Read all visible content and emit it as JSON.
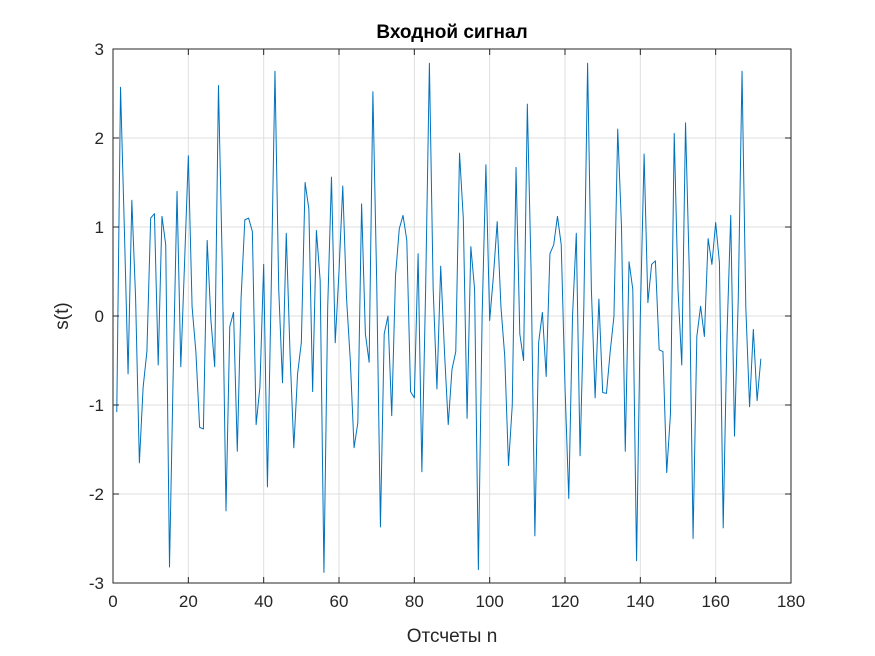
{
  "chart_data": {
    "type": "line",
    "title": "Входной сигнал",
    "xlabel": "Отсчеты n",
    "ylabel": "s(t)",
    "xlim": [
      0,
      180
    ],
    "ylim": [
      -3,
      3
    ],
    "xticks": [
      0,
      20,
      40,
      60,
      80,
      100,
      120,
      140,
      160,
      180
    ],
    "yticks": [
      -3,
      -2,
      -1,
      0,
      1,
      2,
      3
    ],
    "xtick_labels": [
      "0",
      "20",
      "40",
      "60",
      "80",
      "100",
      "120",
      "140",
      "160",
      "180"
    ],
    "ytick_labels": [
      "-3",
      "-2",
      "-1",
      "0",
      "1",
      "2",
      "3"
    ],
    "grid": true,
    "line_color": "#0072bd",
    "series": [
      {
        "x_start": 1,
        "values": [
          -1.08,
          2.57,
          1.0,
          -0.65,
          1.3,
          0.2,
          -1.65,
          -0.8,
          -0.4,
          1.1,
          1.15,
          -0.55,
          1.12,
          0.8,
          -2.82,
          -0.6,
          1.4,
          -0.57,
          0.6,
          1.8,
          0.1,
          -0.4,
          -1.25,
          -1.27,
          0.85,
          -0.05,
          -0.57,
          2.59,
          0.6,
          -2.19,
          -0.12,
          0.04,
          -1.52,
          0.2,
          1.08,
          1.1,
          0.95,
          -1.22,
          -0.8,
          0.58,
          -1.92,
          0.3,
          2.75,
          0.3,
          -0.75,
          0.93,
          -0.42,
          -1.48,
          -0.65,
          -0.3,
          1.5,
          1.2,
          -0.85,
          0.96,
          0.4,
          -2.88,
          0.1,
          1.56,
          -0.3,
          0.5,
          1.46,
          0.2,
          -0.5,
          -1.48,
          -1.2,
          1.26,
          -0.2,
          -0.52,
          2.52,
          0.4,
          -2.37,
          -0.2,
          0.0,
          -1.12,
          0.45,
          0.98,
          1.13,
          0.85,
          -0.85,
          -0.92,
          0.7,
          -1.75,
          0.3,
          2.84,
          0.3,
          -0.82,
          0.56,
          -0.4,
          -1.22,
          -0.6,
          -0.4,
          1.83,
          1.1,
          -1.15,
          0.78,
          0.3,
          -2.85,
          0.0,
          1.7,
          -0.05,
          0.45,
          1.06,
          0.1,
          -0.45,
          -1.68,
          -1.0,
          1.67,
          -0.2,
          -0.5,
          2.38,
          0.5,
          -2.47,
          -0.3,
          0.04,
          -0.68,
          0.7,
          0.8,
          1.12,
          0.8,
          -0.8,
          -2.05,
          0.0,
          0.93,
          -1.57,
          0.1,
          2.84,
          0.3,
          -0.92,
          0.19,
          -0.86,
          -0.87,
          -0.4,
          0.0,
          2.1,
          1.0,
          -1.52,
          0.61,
          0.3,
          -2.75,
          0.0,
          1.82,
          0.15,
          0.58,
          0.62,
          -0.38,
          -0.4,
          -1.76,
          -1.1,
          2.05,
          0.3,
          -0.55,
          2.17,
          0.5,
          -2.5,
          -0.23,
          0.11,
          -0.23,
          0.87,
          0.58,
          1.05,
          0.6,
          -2.38,
          -0.22,
          1.13,
          -1.35,
          0.2,
          2.75,
          0.1,
          -1.02,
          -0.15,
          -0.95,
          -0.48
        ]
      }
    ]
  }
}
